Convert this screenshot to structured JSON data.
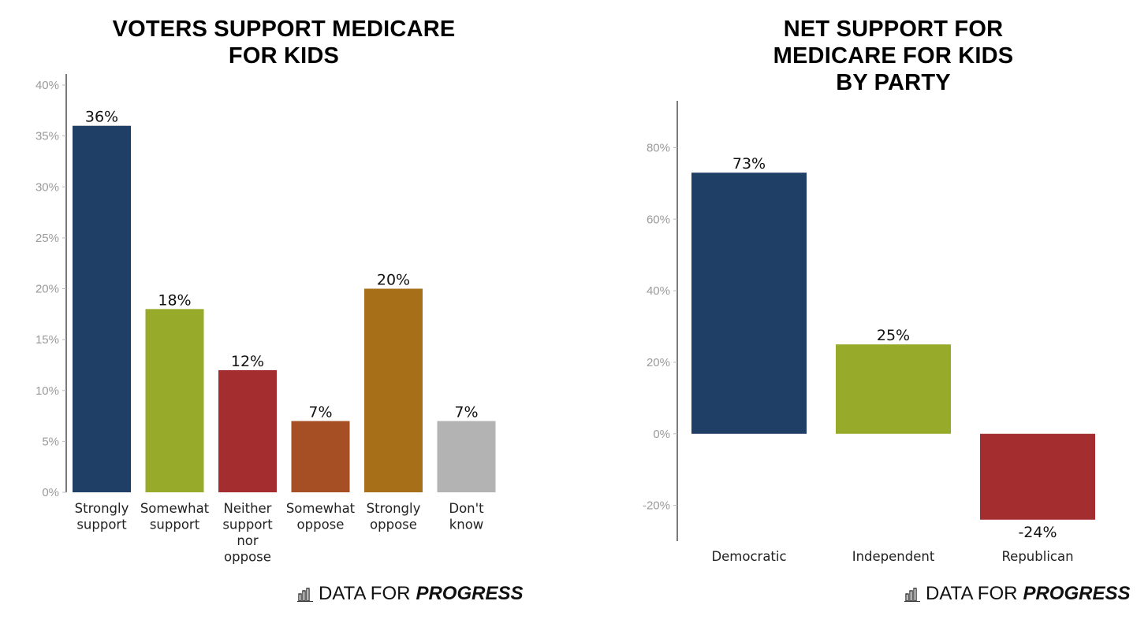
{
  "brand": {
    "light": "DATA FOR",
    "bold": "PROGRESS",
    "icon": "bar-chart-icon"
  },
  "chart_data": [
    {
      "type": "bar",
      "title": "VOTERS SUPPORT MEDICARE\nFOR KIDS",
      "categories": [
        "Strongly\nsupport",
        "Somewhat\nsupport",
        "Neither\nsupport\nnor\noppose",
        "Somewhat\noppose",
        "Strongly\noppose",
        "Don't\nknow"
      ],
      "values": [
        36,
        18,
        12,
        7,
        20,
        7
      ],
      "value_labels": [
        "36%",
        "18%",
        "12%",
        "7%",
        "20%",
        "7%"
      ],
      "colors": [
        "#1f3f66",
        "#98aa2a",
        "#a32d2f",
        "#a64f24",
        "#a66f18",
        "#b3b3b3"
      ],
      "ylim": [
        0,
        40
      ],
      "yticks": [
        0,
        5,
        10,
        15,
        20,
        25,
        30,
        35,
        40
      ],
      "ytick_labels": [
        "0%",
        "5%",
        "10%",
        "15%",
        "20%",
        "25%",
        "30%",
        "35%",
        "40%"
      ],
      "grid": false
    },
    {
      "type": "bar",
      "title": "NET SUPPORT FOR\nMEDICARE FOR KIDS\nBY PARTY",
      "categories": [
        "Democratic",
        "Independent",
        "Republican"
      ],
      "values": [
        73,
        25,
        -24
      ],
      "value_labels": [
        "73%",
        "25%",
        "-24%"
      ],
      "colors": [
        "#1f3f66",
        "#98aa2a",
        "#a32d2f"
      ],
      "ylim": [
        -30,
        90
      ],
      "yticks": [
        -20,
        0,
        20,
        40,
        60,
        80
      ],
      "ytick_labels": [
        "-20%",
        "0%",
        "20%",
        "40%",
        "60%",
        "80%"
      ],
      "grid": false
    }
  ]
}
